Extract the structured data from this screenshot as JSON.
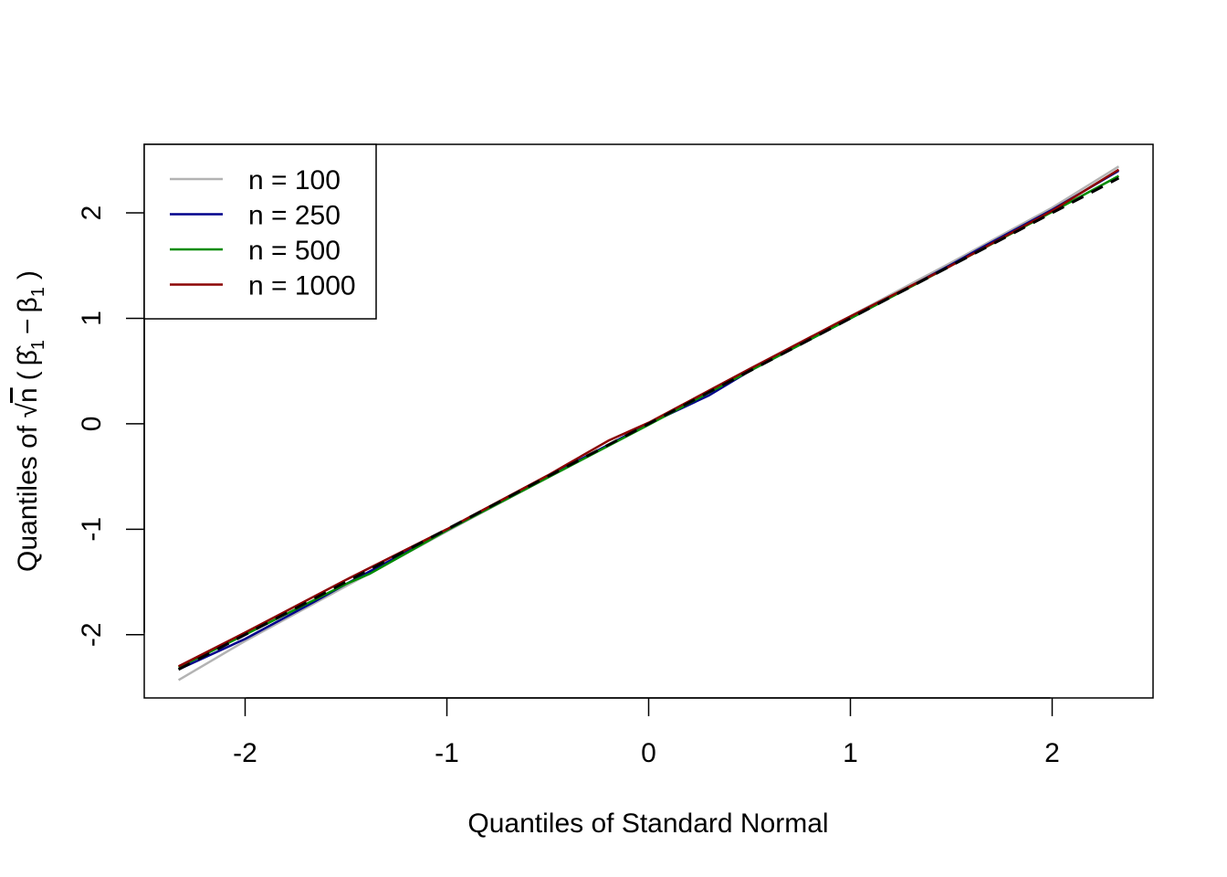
{
  "chart_data": {
    "type": "line",
    "title": "",
    "xlabel": "Quantiles of Standard Normal",
    "ylabel": {
      "prefix": "Quantiles of ",
      "sqrt_symbol": "√",
      "sqrt_arg": "n",
      "open_paren": "(",
      "beta_hat": "β̂",
      "subscript": "1",
      "minus": "−",
      "beta": "β",
      "close_paren": ")"
    },
    "xlim": [
      -2.5,
      2.5
    ],
    "ylim": [
      -2.6,
      2.65
    ],
    "xticks": [
      -2,
      -1,
      0,
      1,
      2
    ],
    "xtick_labels": [
      "-2",
      "-1",
      "0",
      "1",
      "2"
    ],
    "yticks": [
      -2,
      -1,
      0,
      1,
      2
    ],
    "ytick_labels": [
      "-2",
      "-1",
      "0",
      "1",
      "2"
    ],
    "grid": false,
    "legend_position": "top-left",
    "series": [
      {
        "name": "n = 100",
        "color": "#b3b3b3",
        "x": [
          -2.33,
          -2.0,
          -1.5,
          -1.0,
          -0.5,
          0.0,
          0.5,
          1.0,
          1.5,
          2.0,
          2.33
        ],
        "y": [
          -2.43,
          -2.06,
          -1.54,
          -1.02,
          -0.51,
          0.0,
          0.51,
          1.02,
          1.53,
          2.05,
          2.44
        ]
      },
      {
        "name": "n = 250",
        "color": "#00008b",
        "x": [
          -2.33,
          -2.0,
          -1.65,
          -1.5,
          -1.0,
          -0.5,
          0.0,
          0.3,
          0.5,
          1.0,
          1.5,
          1.65,
          2.0,
          2.33
        ],
        "y": [
          -2.33,
          -2.04,
          -1.68,
          -1.52,
          -1.01,
          -0.5,
          0.0,
          0.27,
          0.5,
          1.0,
          1.51,
          1.67,
          2.03,
          2.4
        ]
      },
      {
        "name": "n = 500",
        "color": "#008b00",
        "x": [
          -2.33,
          -2.0,
          -1.5,
          -1.38,
          -1.0,
          -0.5,
          0.0,
          0.5,
          1.0,
          1.5,
          2.0,
          2.33
        ],
        "y": [
          -2.31,
          -2.0,
          -1.52,
          -1.42,
          -1.01,
          -0.51,
          -0.01,
          0.5,
          1.0,
          1.5,
          2.01,
          2.35
        ]
      },
      {
        "name": "n = 1000",
        "color": "#8b0000",
        "x": [
          -2.33,
          -2.0,
          -1.85,
          -1.5,
          -1.0,
          -0.5,
          -0.2,
          0.0,
          0.5,
          0.95,
          1.5,
          2.0,
          2.33
        ],
        "y": [
          -2.3,
          -1.98,
          -1.83,
          -1.48,
          -1.0,
          -0.49,
          -0.16,
          0.01,
          0.52,
          0.97,
          1.5,
          2.02,
          2.41
        ]
      }
    ],
    "reference_line": {
      "style": "dashed",
      "color": "#000000",
      "x": [
        -2.33,
        2.33
      ],
      "y": [
        -2.33,
        2.33
      ]
    }
  }
}
